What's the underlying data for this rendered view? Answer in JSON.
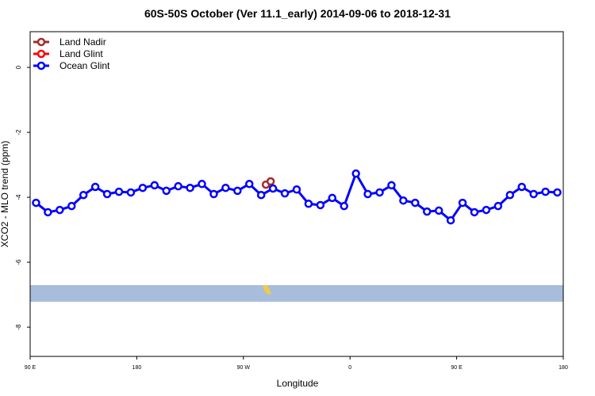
{
  "chart_data": {
    "type": "line",
    "title": "60S-50S October (Ver 11.1_early)   2014-09-06 to 2018-12-31",
    "x_label": "Longitude",
    "y_label": "XCO2 - MLO trend (ppm)",
    "xlim": [
      90,
      540
    ],
    "xticks": [
      {
        "value": 90,
        "label": "90 E"
      },
      180,
      {
        "value": 270,
        "label": "90 W"
      },
      {
        "value": 360,
        "label": "0"
      },
      {
        "value": 450,
        "label": "90 E"
      },
      {
        "value": 540,
        "label": "180"
      }
    ],
    "ylim": [
      -8.9,
      1.1
    ],
    "yticks": [
      0,
      -2,
      -4,
      -6,
      -8
    ],
    "legend": "top-left",
    "series": [
      {
        "name": "Land Nadir",
        "color": "#a52a2a",
        "x": [
          289,
          293
        ],
        "values": [
          -3.61,
          -3.51
        ]
      },
      {
        "name": "Land Glint",
        "color": "#ff0000",
        "x": [],
        "values": []
      },
      {
        "name": "Ocean Glint",
        "color": "#0000ff",
        "x": [
          95,
          105,
          115,
          125,
          135,
          145,
          155,
          165,
          175,
          185,
          195,
          205,
          215,
          225,
          235,
          245,
          255,
          265,
          275,
          285,
          295,
          305,
          315,
          325,
          335,
          345,
          355,
          365,
          375,
          385,
          395,
          405,
          415,
          425,
          435,
          445,
          455,
          465,
          475,
          485,
          495,
          505,
          515,
          525,
          535
        ],
        "values": [
          -4.17,
          -4.46,
          -4.39,
          -4.27,
          -3.93,
          -3.68,
          -3.9,
          -3.83,
          -3.85,
          -3.71,
          -3.63,
          -3.8,
          -3.66,
          -3.71,
          -3.59,
          -3.9,
          -3.71,
          -3.8,
          -3.59,
          -3.93,
          -3.73,
          -3.88,
          -3.76,
          -4.2,
          -4.24,
          -4.02,
          -4.27,
          -3.27,
          -3.9,
          -3.85,
          -3.63,
          -4.1,
          -4.17,
          -4.44,
          -4.41,
          -4.71,
          -4.17,
          -4.46,
          -4.39,
          -4.27,
          -3.93,
          -3.68,
          -3.9,
          -3.83,
          -3.85
        ]
      }
    ]
  }
}
